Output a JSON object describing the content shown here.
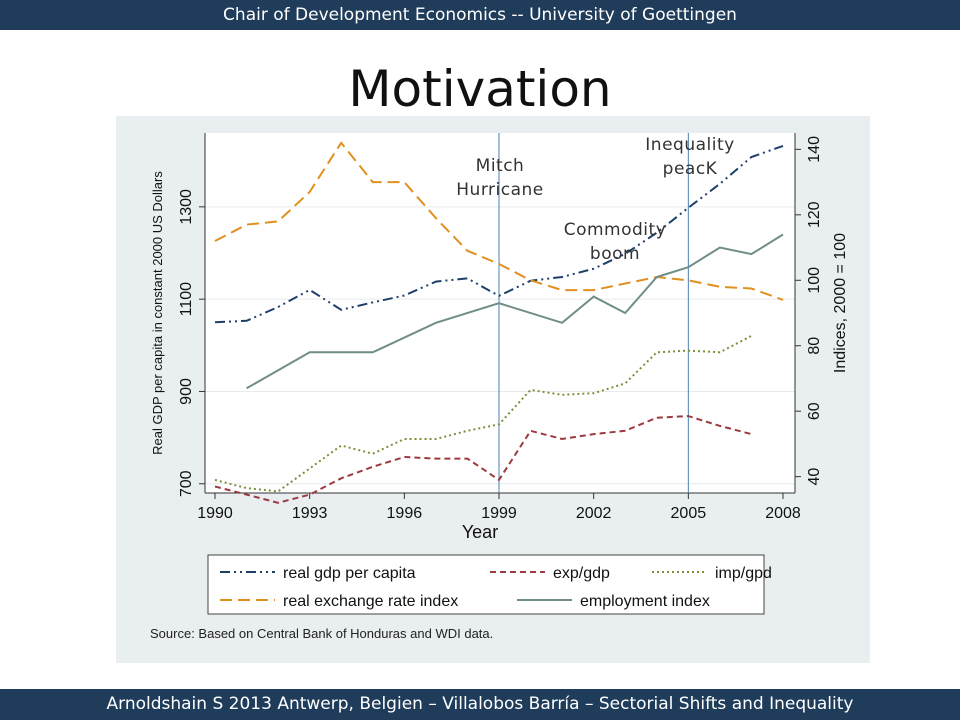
{
  "header": {
    "text": "Chair of Development Economics -- University of Goettingen"
  },
  "slide": {
    "title": "Motivation"
  },
  "footer": {
    "text": "Arnoldshain S 2013 Antwerp, Belgien – Villalobos Barría – Sectorial Shifts and Inequality"
  },
  "annotations": {
    "mitch_line1": "Mitch",
    "mitch_line2": "Hurricane",
    "commodity_line1": "Commodity",
    "commodity_line2": "boom",
    "inequality_line1": "Inequality",
    "inequality_line2": "peacK"
  },
  "source": "Source: Based on Central Bank of Honduras and WDI data.",
  "colors": {
    "bar": "#1f3c5a",
    "gdp": "#1f3f6b",
    "exp": "#9c3a3f",
    "imp": "#7a8f3a",
    "rer": "#e0901f",
    "emp": "#6f8e85"
  },
  "chart_data": {
    "type": "line",
    "xlabel": "Year",
    "ylabel_left": "Real GDP per capita in constant 2000 US Dollars",
    "ylabel_right": "Indices, 2000 = 100",
    "xlim": [
      1990,
      2008
    ],
    "ylim_left": [
      680,
      1460
    ],
    "ylim_right": [
      35,
      145
    ],
    "x_ticks": [
      1990,
      1993,
      1996,
      1999,
      2002,
      2005,
      2008
    ],
    "y_ticks_left": [
      700,
      900,
      1100,
      1300
    ],
    "y_ticks_right": [
      40,
      60,
      80,
      100,
      120,
      140
    ],
    "vlines": [
      1999,
      2005
    ],
    "series": [
      {
        "name": "real gdp per capita",
        "axis": "left",
        "style": "dashdot",
        "x": [
          1990,
          1991,
          1992,
          1993,
          1994,
          1995,
          1996,
          1997,
          1998,
          1999,
          2000,
          2001,
          2002,
          2003,
          2004,
          2005,
          2006,
          2007,
          2008
        ],
        "y": [
          1050,
          1053,
          1083,
          1120,
          1077,
          1093,
          1108,
          1138,
          1145,
          1107,
          1140,
          1148,
          1166,
          1198,
          1244,
          1298,
          1350,
          1408,
          1432
        ]
      },
      {
        "name": "exp/gdp",
        "axis": "right",
        "style": "dashed",
        "x": [
          1990,
          1991,
          1992,
          1993,
          1994,
          1995,
          1996,
          1997,
          1998,
          1999,
          2000,
          2001,
          2002,
          2003,
          2004,
          2005,
          2006,
          2007
        ],
        "y": [
          37,
          34.5,
          32,
          34.5,
          39.5,
          43,
          46,
          45.5,
          45.5,
          39,
          54,
          51.5,
          53,
          54,
          58,
          58.5,
          55.5,
          53
        ]
      },
      {
        "name": "imp/gpd",
        "axis": "right",
        "style": "dotted",
        "x": [
          1990,
          1991,
          1992,
          1993,
          1994,
          1995,
          1996,
          1997,
          1998,
          1999,
          2000,
          2001,
          2002,
          2003,
          2004,
          2005,
          2006,
          2007
        ],
        "y": [
          39,
          36.5,
          35.5,
          42.5,
          49.5,
          47,
          51.5,
          51.5,
          54,
          56,
          66.5,
          65,
          65.5,
          68.5,
          78,
          78.5,
          78,
          83
        ]
      },
      {
        "name": "real exchange rate index",
        "axis": "right",
        "style": "longdash",
        "x": [
          1990,
          1991,
          1992,
          1993,
          1994,
          1995,
          1996,
          1997,
          1998,
          1999,
          2000,
          2001,
          2002,
          2003,
          2004,
          2005,
          2006,
          2007,
          2008
        ],
        "y": [
          112,
          117,
          118,
          127,
          142,
          130,
          130,
          119,
          109,
          105,
          100,
          97,
          97,
          99,
          101,
          100,
          98,
          97.5,
          94
        ]
      },
      {
        "name": "employment index",
        "axis": "right",
        "style": "solid",
        "x": [
          1991,
          1993,
          1995,
          1997,
          1999,
          2001,
          2002,
          2003,
          2004,
          2005,
          2006,
          2007,
          2008
        ],
        "y": [
          67,
          78,
          78,
          87,
          93,
          87,
          95,
          90,
          101,
          104,
          110,
          108,
          114
        ]
      }
    ]
  }
}
